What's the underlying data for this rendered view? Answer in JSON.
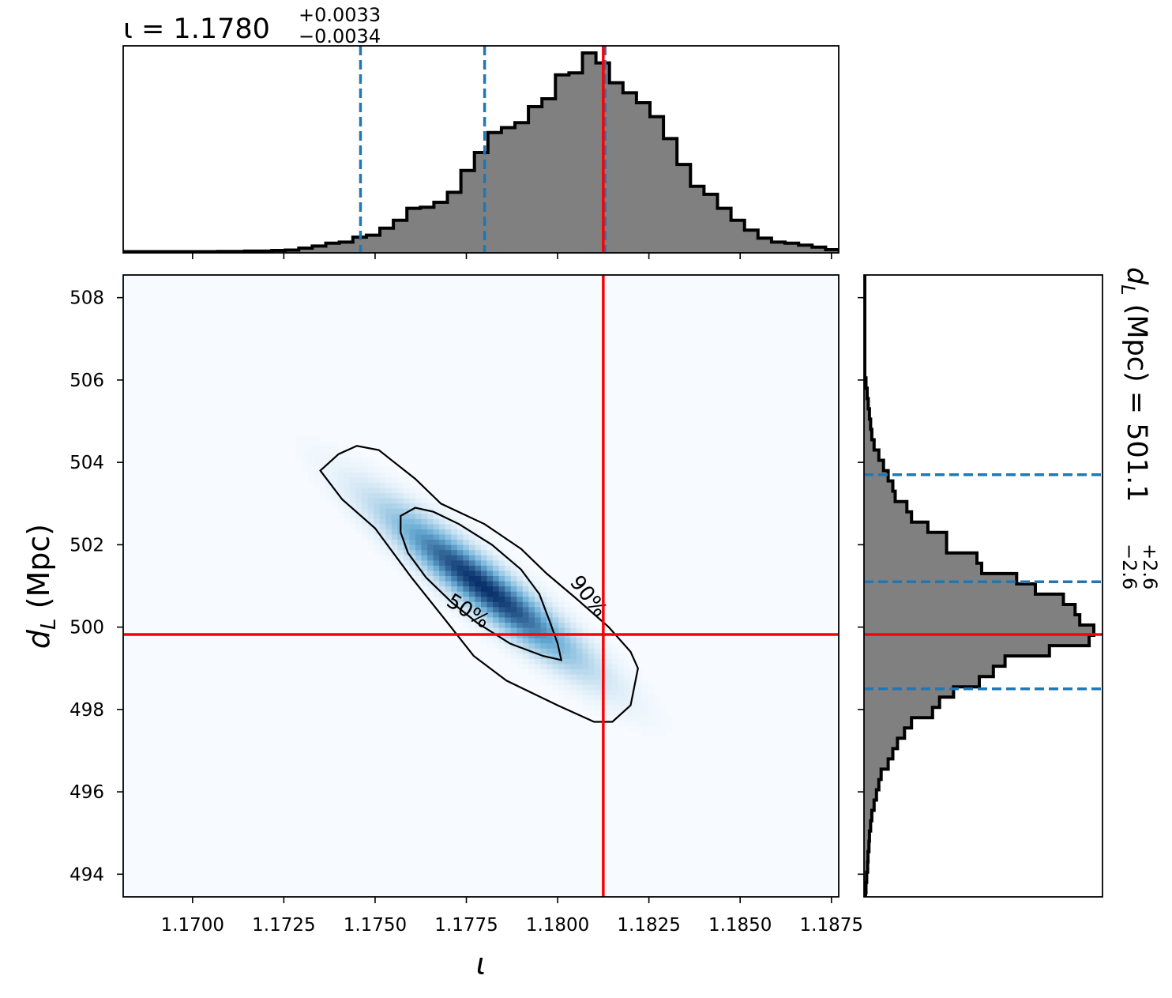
{
  "chart_data": {
    "type": "corner",
    "parameters": [
      {
        "symbol": "ι",
        "unit": ""
      },
      {
        "symbol": "d_L",
        "unit": "Mpc"
      }
    ],
    "top_title": {
      "prefix": "ι = 1.1780",
      "plus": "+0.0033",
      "minus": "−0.0034"
    },
    "right_title": {
      "prefix": "d",
      "sub": "L",
      "mid": " (Mpc) = 501.1",
      "plus": "+2.6",
      "minus": "−2.6"
    },
    "xlabel": "ι",
    "ylabel": {
      "main": "d",
      "sub": "L",
      "unit": " (Mpc)"
    },
    "xlim": [
      1.1681,
      1.1877
    ],
    "ylim": [
      493.45,
      508.55
    ],
    "x_ticks": [
      1.17,
      1.1725,
      1.175,
      1.1775,
      1.18,
      1.1825,
      1.185,
      1.1875
    ],
    "x_tick_labels": [
      "1.1700",
      "1.1725",
      "1.1750",
      "1.1775",
      "1.1800",
      "1.1825",
      "1.1850",
      "1.1875"
    ],
    "y_ticks": [
      494,
      496,
      498,
      500,
      502,
      504,
      506,
      508
    ],
    "y_tick_labels": [
      "494",
      "496",
      "498",
      "500",
      "502",
      "504",
      "506",
      "508"
    ],
    "true_values": {
      "iota": 1.18125,
      "dL": 499.82
    },
    "iota_quantiles": [
      1.1746,
      1.178,
      1.1813
    ],
    "dL_quantiles": [
      498.5,
      501.1,
      503.7
    ],
    "contour_labels": [
      "50%",
      "90%"
    ],
    "iota_hist": {
      "bin_edges_start": 1.1681,
      "bin_width": 0.00037,
      "counts": [
        0.002,
        0.002,
        0.002,
        0.002,
        0.002,
        0.002,
        0.002,
        0.003,
        0.003,
        0.005,
        0.005,
        0.008,
        0.01,
        0.02,
        0.03,
        0.045,
        0.05,
        0.075,
        0.085,
        0.12,
        0.16,
        0.22,
        0.225,
        0.25,
        0.3,
        0.41,
        0.5,
        0.6,
        0.625,
        0.65,
        0.73,
        0.77,
        0.89,
        0.9,
        1.0,
        0.95,
        0.85,
        0.8,
        0.75,
        0.68,
        0.57,
        0.44,
        0.33,
        0.29,
        0.22,
        0.16,
        0.11,
        0.07,
        0.05,
        0.045,
        0.035,
        0.025,
        0.012,
        0.01,
        0.008,
        0.005,
        0.004,
        0.003,
        0.002,
        0.002,
        0.002,
        0.002,
        0.002,
        0.002,
        0.002,
        0.002,
        0.002,
        0.002,
        0.002,
        0.002
      ]
    },
    "dL_hist": {
      "bin_edges_start": 508.55,
      "bin_width": -0.25,
      "counts": [
        0.0,
        0.0,
        0.0,
        0.0,
        0.0,
        0.0,
        0.0,
        0.0,
        0.0,
        0.0,
        0.005,
        0.01,
        0.015,
        0.02,
        0.025,
        0.03,
        0.04,
        0.06,
        0.08,
        0.1,
        0.12,
        0.13,
        0.18,
        0.2,
        0.27,
        0.35,
        0.35,
        0.48,
        0.5,
        0.65,
        0.73,
        0.85,
        0.9,
        0.92,
        0.98,
        0.96,
        0.79,
        0.6,
        0.55,
        0.49,
        0.38,
        0.32,
        0.29,
        0.2,
        0.17,
        0.14,
        0.12,
        0.1,
        0.07,
        0.06,
        0.05,
        0.04,
        0.03,
        0.025,
        0.02,
        0.018,
        0.014,
        0.012,
        0.008,
        0.005,
        0.003,
        0.0,
        0.0
      ]
    },
    "posterior_2d": {
      "mean": [
        1.17795,
        501.0
      ],
      "std": [
        0.0017,
        1.2
      ],
      "correlation": -0.93
    },
    "contour_50": [
      [
        1.1757,
        502.7
      ],
      [
        1.1761,
        502.9
      ],
      [
        1.1766,
        502.8
      ],
      [
        1.1773,
        502.5
      ],
      [
        1.1782,
        502.0
      ],
      [
        1.179,
        501.4
      ],
      [
        1.1795,
        500.8
      ],
      [
        1.1798,
        500.1
      ],
      [
        1.18,
        499.6
      ],
      [
        1.1801,
        499.2
      ],
      [
        1.1796,
        499.3
      ],
      [
        1.1787,
        499.6
      ],
      [
        1.1778,
        500.1
      ],
      [
        1.1771,
        500.6
      ],
      [
        1.1764,
        501.2
      ],
      [
        1.1759,
        501.8
      ],
      [
        1.1757,
        502.3
      ],
      [
        1.1757,
        502.7
      ]
    ],
    "contour_90": [
      [
        1.1735,
        503.8
      ],
      [
        1.174,
        504.2
      ],
      [
        1.1745,
        504.4
      ],
      [
        1.1751,
        504.3
      ],
      [
        1.1761,
        503.6
      ],
      [
        1.1768,
        503.0
      ],
      [
        1.178,
        502.5
      ],
      [
        1.179,
        501.9
      ],
      [
        1.1797,
        501.3
      ],
      [
        1.1805,
        500.7
      ],
      [
        1.1814,
        500.0
      ],
      [
        1.182,
        499.4
      ],
      [
        1.1822,
        499.0
      ],
      [
        1.182,
        498.1
      ],
      [
        1.1815,
        497.7
      ],
      [
        1.181,
        497.7
      ],
      [
        1.18,
        498.1
      ],
      [
        1.1786,
        498.7
      ],
      [
        1.1777,
        499.3
      ],
      [
        1.1769,
        500.2
      ],
      [
        1.176,
        501.2
      ],
      [
        1.175,
        502.4
      ],
      [
        1.1741,
        503.1
      ],
      [
        1.1735,
        503.8
      ]
    ]
  }
}
